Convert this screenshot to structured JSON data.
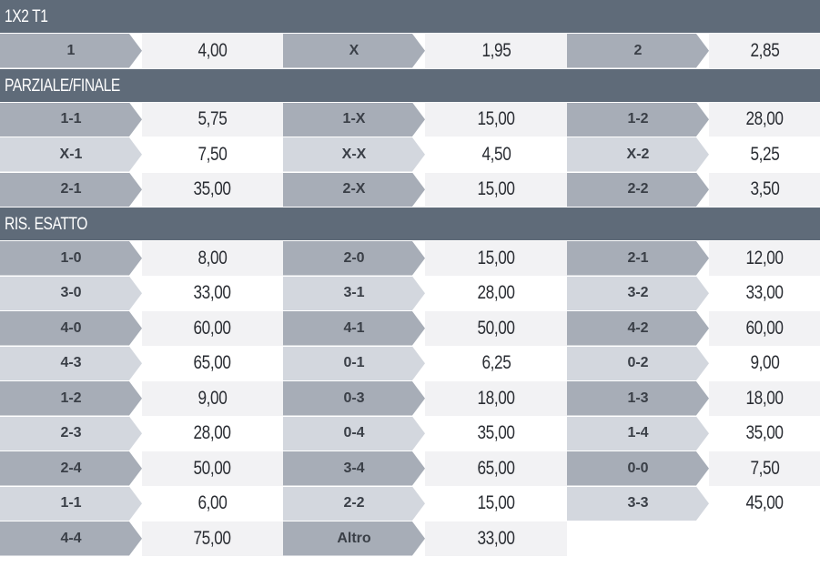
{
  "sections": [
    {
      "title": "1X2 T1",
      "rows": [
        {
          "shade": "dark",
          "cells": [
            {
              "label": "1",
              "odd": "4,00"
            },
            {
              "label": "X",
              "odd": "1,95"
            },
            {
              "label": "2",
              "odd": "2,85"
            }
          ]
        }
      ]
    },
    {
      "title": "PARZIALE/FINALE",
      "rows": [
        {
          "shade": "dark",
          "cells": [
            {
              "label": "1-1",
              "odd": "5,75"
            },
            {
              "label": "1-X",
              "odd": "15,00"
            },
            {
              "label": "1-2",
              "odd": "28,00"
            }
          ]
        },
        {
          "shade": "light",
          "cells": [
            {
              "label": "X-1",
              "odd": "7,50"
            },
            {
              "label": "X-X",
              "odd": "4,50"
            },
            {
              "label": "X-2",
              "odd": "5,25"
            }
          ]
        },
        {
          "shade": "dark",
          "cells": [
            {
              "label": "2-1",
              "odd": "35,00"
            },
            {
              "label": "2-X",
              "odd": "15,00"
            },
            {
              "label": "2-2",
              "odd": "3,50"
            }
          ]
        }
      ]
    },
    {
      "title": "RIS. ESATTO",
      "rows": [
        {
          "shade": "dark",
          "cells": [
            {
              "label": "1-0",
              "odd": "8,00"
            },
            {
              "label": "2-0",
              "odd": "15,00"
            },
            {
              "label": "2-1",
              "odd": "12,00"
            }
          ]
        },
        {
          "shade": "light",
          "cells": [
            {
              "label": "3-0",
              "odd": "33,00"
            },
            {
              "label": "3-1",
              "odd": "28,00"
            },
            {
              "label": "3-2",
              "odd": "33,00"
            }
          ]
        },
        {
          "shade": "dark",
          "cells": [
            {
              "label": "4-0",
              "odd": "60,00"
            },
            {
              "label": "4-1",
              "odd": "50,00"
            },
            {
              "label": "4-2",
              "odd": "60,00"
            }
          ]
        },
        {
          "shade": "light",
          "cells": [
            {
              "label": "4-3",
              "odd": "65,00"
            },
            {
              "label": "0-1",
              "odd": "6,25"
            },
            {
              "label": "0-2",
              "odd": "9,00"
            }
          ]
        },
        {
          "shade": "dark",
          "cells": [
            {
              "label": "1-2",
              "odd": "9,00"
            },
            {
              "label": "0-3",
              "odd": "18,00"
            },
            {
              "label": "1-3",
              "odd": "18,00"
            }
          ]
        },
        {
          "shade": "light",
          "cells": [
            {
              "label": "2-3",
              "odd": "28,00"
            },
            {
              "label": "0-4",
              "odd": "35,00"
            },
            {
              "label": "1-4",
              "odd": "35,00"
            }
          ]
        },
        {
          "shade": "dark",
          "cells": [
            {
              "label": "2-4",
              "odd": "50,00"
            },
            {
              "label": "3-4",
              "odd": "65,00"
            },
            {
              "label": "0-0",
              "odd": "7,50"
            }
          ]
        },
        {
          "shade": "light",
          "cells": [
            {
              "label": "1-1",
              "odd": "6,00"
            },
            {
              "label": "2-2",
              "odd": "15,00"
            },
            {
              "label": "3-3",
              "odd": "45,00"
            }
          ]
        },
        {
          "shade": "dark",
          "cells": [
            {
              "label": "4-4",
              "odd": "75,00"
            },
            {
              "label": "Altro",
              "odd": "33,00"
            }
          ]
        }
      ]
    }
  ],
  "colors": {
    "header_bg": "#5f6b79",
    "dark_label": "#a7adb7",
    "light_label": "#d3d7de",
    "dark_odd": "#f2f2f4",
    "light_odd": "#ffffff"
  }
}
